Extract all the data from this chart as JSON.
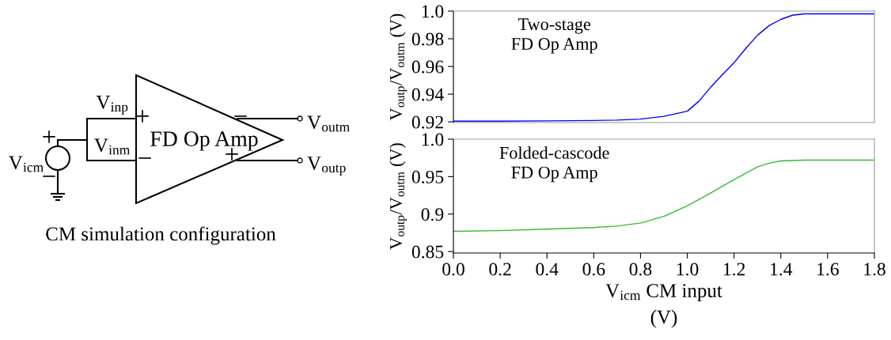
{
  "chart_data": [
    {
      "type": "other",
      "title": "CM simulation configuration",
      "annotations": [
        "V$_{inp}$",
        "V$_{inm}$",
        "FD Op Amp",
        "V$_{icm}$",
        "V$_{outm}$",
        "V$_{outp}$",
        "+",
        "−",
        "+",
        "−",
        "−",
        "+"
      ]
    },
    {
      "type": "line",
      "ylabel": "V$_{outp}$/V$_{outm}$ (V)",
      "annotations": [
        "Two-stage\nFD Op Amp"
      ],
      "xlim": [
        0,
        1.8
      ],
      "ylim": [
        0.9195,
        1.0
      ],
      "yticks": [
        0.92,
        0.94,
        0.96,
        0.98,
        {
          "value": 1.0,
          "label": "1.0"
        }
      ],
      "tick_labels": "y",
      "series": [
        {
          "color": "#0000ff",
          "x": [
            0.0,
            0.2,
            0.4,
            0.6,
            0.7,
            0.8,
            0.9,
            1.0,
            1.05,
            1.1,
            1.15,
            1.2,
            1.25,
            1.3,
            1.35,
            1.4,
            1.45,
            1.5,
            1.6,
            1.8
          ],
          "values": [
            0.9205,
            0.9205,
            0.9207,
            0.921,
            0.9213,
            0.922,
            0.924,
            0.9277,
            0.935,
            0.945,
            0.954,
            0.9627,
            0.973,
            0.9825,
            0.9895,
            0.994,
            0.997,
            0.998,
            0.998,
            0.998
          ]
        }
      ]
    },
    {
      "type": "line",
      "ylabel": "V$_{outp}$/V$_{outm}$ (V)",
      "xlabel": "V$_{icm}$ CM input\n(V)",
      "annotations": [
        "Folded-cascode\nFD Op Amp"
      ],
      "xlim": [
        0,
        1.8
      ],
      "xticks": [
        {
          "value": 0.0,
          "label": "0.0"
        },
        {
          "value": 0.2,
          "label": "0.2"
        },
        {
          "value": 0.4,
          "label": "0.4"
        },
        {
          "value": 0.6,
          "label": "0.6"
        },
        {
          "value": 0.8,
          "label": "0.8"
        },
        {
          "value": 1.0,
          "label": "1.0"
        },
        {
          "value": 1.2,
          "label": "1.2"
        },
        {
          "value": 1.4,
          "label": "1.4"
        },
        {
          "value": 1.6,
          "label": "1.6"
        },
        {
          "value": 1.8,
          "label": "1.8"
        }
      ],
      "ylim": [
        0.848,
        1.0
      ],
      "yticks": [
        0.85,
        0.9,
        0.95,
        {
          "value": 1.0,
          "label": "1.0"
        }
      ],
      "series": [
        {
          "color": "#33bb33",
          "x": [
            0.0,
            0.2,
            0.4,
            0.6,
            0.7,
            0.8,
            0.9,
            1.0,
            1.1,
            1.2,
            1.3,
            1.35,
            1.4,
            1.5,
            1.8
          ],
          "values": [
            0.877,
            0.878,
            0.88,
            0.882,
            0.884,
            0.888,
            0.897,
            0.911,
            0.928,
            0.946,
            0.963,
            0.968,
            0.971,
            0.972,
            0.972
          ]
        }
      ]
    }
  ]
}
